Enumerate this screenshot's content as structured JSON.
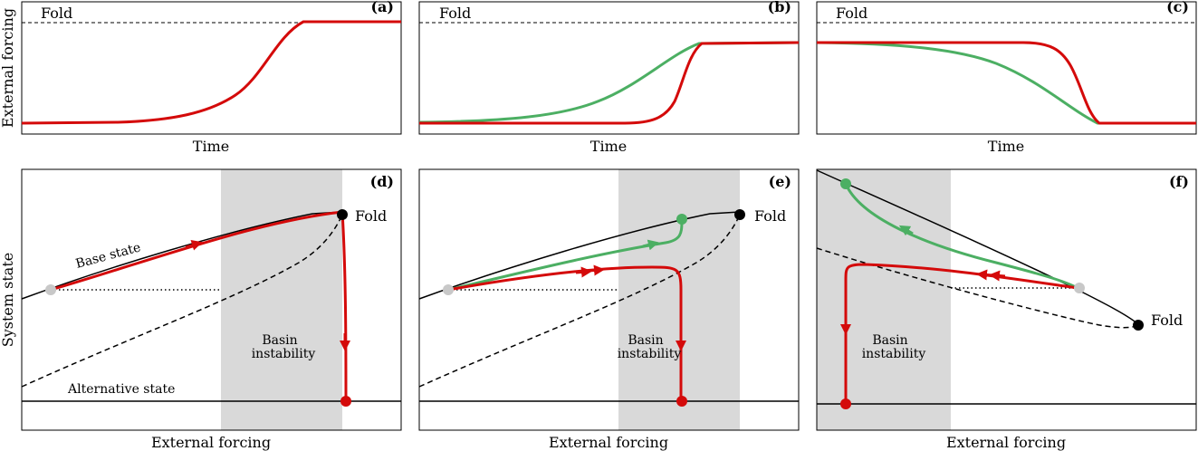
{
  "figure": {
    "colors": {
      "red": "#d40a0a",
      "green": "#4caf63",
      "grey": "#d9d9d9",
      "dot_grey": "#c8c8c8",
      "black": "#000000"
    },
    "top_panels": [
      {
        "tag": "(a)",
        "fold_label": "Fold",
        "xlabel": "Time"
      },
      {
        "tag": "(b)",
        "fold_label": "Fold",
        "xlabel": "Time"
      },
      {
        "tag": "(c)",
        "fold_label": "Fold",
        "xlabel": "Time"
      }
    ],
    "top_ylabel": "External forcing",
    "bottom_panels": [
      {
        "tag": "(d)",
        "fold_label": "Fold",
        "xlabel": "External forcing",
        "basin_line1": "Basin",
        "basin_line2": "instability",
        "base_state": "Base state",
        "alt_state": "Alternative state"
      },
      {
        "tag": "(e)",
        "fold_label": "Fold",
        "xlabel": "External forcing",
        "basin_line1": "Basin",
        "basin_line2": "instability"
      },
      {
        "tag": "(f)",
        "fold_label": "Fold",
        "xlabel": "External forcing",
        "basin_line1": "Basin",
        "basin_line2": "instability"
      }
    ],
    "bottom_ylabel": "System state"
  }
}
